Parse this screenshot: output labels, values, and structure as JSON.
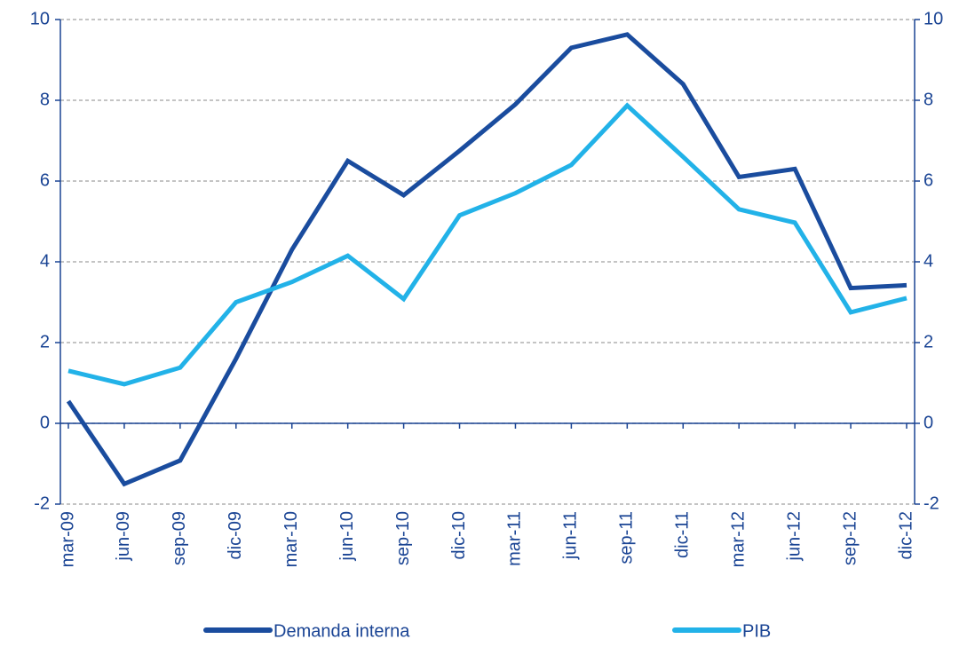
{
  "chart_data": {
    "type": "line",
    "categories": [
      "mar-09",
      "jun-09",
      "sep-09",
      "dic-09",
      "mar-10",
      "jun-10",
      "sep-10",
      "dic-10",
      "mar-11",
      "jun-11",
      "sep-11",
      "dic-11",
      "mar-12",
      "jun-12",
      "sep-12",
      "dic-12"
    ],
    "series": [
      {
        "name": "Demanda interna",
        "color": "#1a4c9e",
        "values": [
          0.55,
          -1.5,
          -0.92,
          1.6,
          4.3,
          6.5,
          5.65,
          6.75,
          7.9,
          9.3,
          9.63,
          8.4,
          6.1,
          6.3,
          3.35,
          3.42
        ]
      },
      {
        "name": "PIB",
        "color": "#22b2e8",
        "values": [
          1.3,
          0.97,
          1.38,
          3.0,
          3.5,
          4.15,
          3.08,
          5.15,
          5.7,
          6.4,
          7.87,
          6.6,
          5.3,
          4.97,
          2.75,
          3.1
        ]
      }
    ],
    "ylim": [
      -2,
      10
    ],
    "yticks": [
      -2,
      0,
      2,
      4,
      6,
      8,
      10
    ],
    "y2lim": [
      -2,
      10
    ],
    "y2ticks": [
      -2,
      0,
      2,
      4,
      6,
      8,
      10
    ],
    "grid": true,
    "legend": "bottom"
  }
}
